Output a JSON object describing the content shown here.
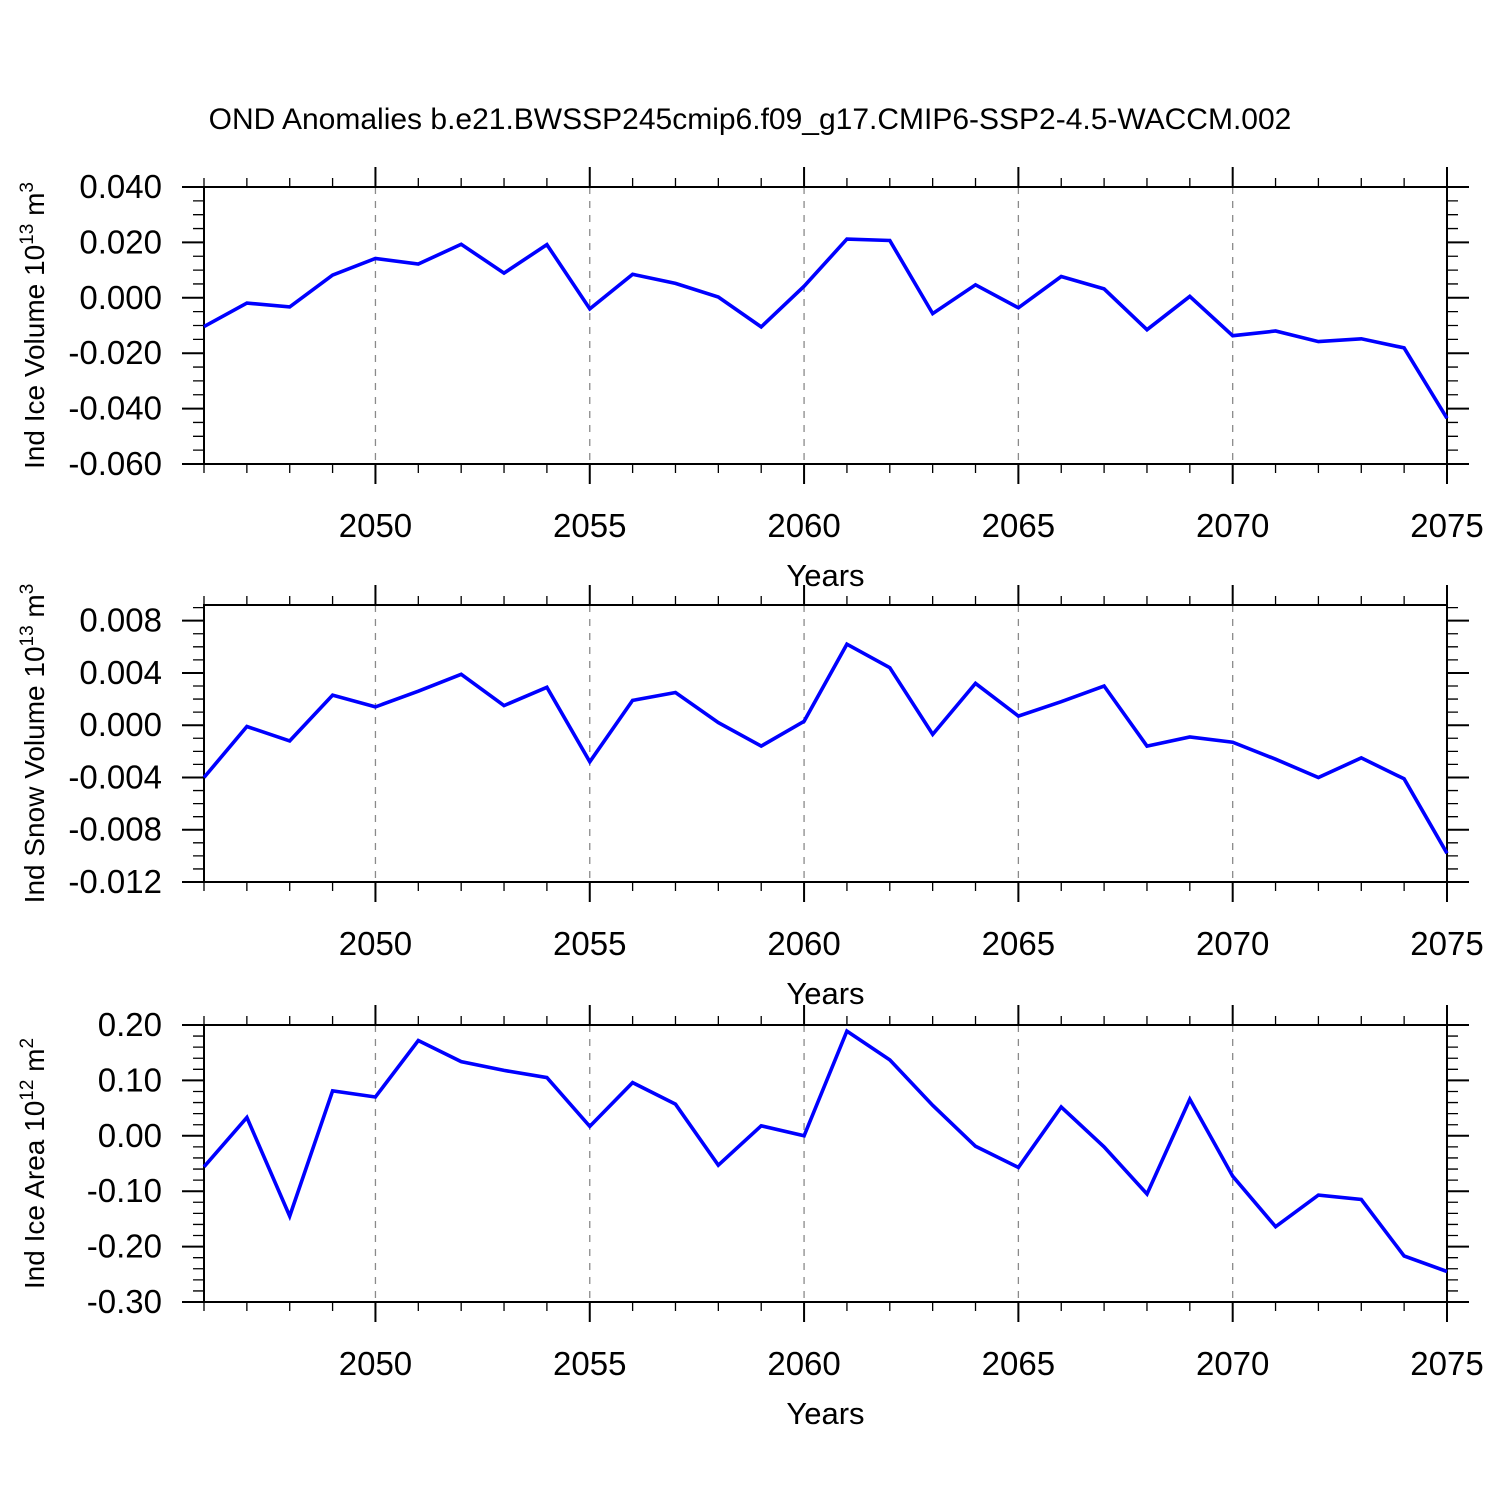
{
  "title": "OND Anomalies b.e21.BWSSP245cmip6.f09_g17.CMIP6-SSP2-4.5-WACCM.002",
  "colors": {
    "line": "#0000ff",
    "grid": "#8a8a8a",
    "axis": "#000000",
    "text": "#000000",
    "background": "#ffffff"
  },
  "chart_data": {
    "type": "line",
    "x": [
      2046,
      2047,
      2048,
      2049,
      2050,
      2051,
      2052,
      2053,
      2054,
      2055,
      2056,
      2057,
      2058,
      2059,
      2060,
      2061,
      2062,
      2063,
      2064,
      2065,
      2066,
      2067,
      2068,
      2069,
      2070,
      2071,
      2072,
      2073,
      2074,
      2075
    ],
    "xlabel": "Years",
    "xticks": [
      {
        "v": 2050,
        "label": "2050"
      },
      {
        "v": 2055,
        "label": "2055"
      },
      {
        "v": 2060,
        "label": "2060"
      },
      {
        "v": 2065,
        "label": "2065"
      },
      {
        "v": 2070,
        "label": "2070"
      },
      {
        "v": 2075,
        "label": "2075"
      }
    ],
    "grid_years": [
      2050,
      2055,
      2060,
      2065,
      2070
    ],
    "legend": "none",
    "grid": "vertical-dashed",
    "panels": [
      {
        "name": "ice-volume",
        "ylabel": "Ind Ice Volume 10^13 m^3",
        "ylabel_parts": [
          {
            "t": "Ind Ice Volume 10"
          },
          {
            "t": "13",
            "sup": true
          },
          {
            "t": " m"
          },
          {
            "t": "3",
            "sup": true
          }
        ],
        "ylim": [
          -0.06,
          0.04
        ],
        "ytick_minor_step": 0.005,
        "yticks": [
          {
            "v": 0.04,
            "label": "0.040"
          },
          {
            "v": 0.02,
            "label": "0.020"
          },
          {
            "v": 0.0,
            "label": "0.000"
          },
          {
            "v": -0.02,
            "label": "-0.020"
          },
          {
            "v": -0.04,
            "label": "-0.040"
          },
          {
            "v": -0.06,
            "label": "-0.060"
          }
        ],
        "values": [
          -0.0104,
          -0.0019,
          -0.0033,
          0.0082,
          0.0142,
          0.0122,
          0.0193,
          0.0089,
          0.0192,
          -0.004,
          0.0085,
          0.0052,
          0.0003,
          -0.0105,
          0.0042,
          0.0212,
          0.0207,
          -0.0057,
          0.0047,
          -0.0036,
          0.0077,
          0.0032,
          -0.0115,
          0.0005,
          -0.0137,
          -0.012,
          -0.0158,
          -0.0148,
          -0.0181,
          -0.0435
        ]
      },
      {
        "name": "snow-volume",
        "ylabel": "Ind Snow Volume 10^13 m^3",
        "ylabel_parts": [
          {
            "t": "Ind Snow Volume 10"
          },
          {
            "t": "13",
            "sup": true
          },
          {
            "t": " m"
          },
          {
            "t": "3",
            "sup": true
          }
        ],
        "ylim": [
          -0.012,
          0.0092
        ],
        "ytick_minor_step": 0.001,
        "yticks": [
          {
            "v": 0.008,
            "label": "0.008"
          },
          {
            "v": 0.004,
            "label": "0.004"
          },
          {
            "v": 0.0,
            "label": "0.000"
          },
          {
            "v": -0.004,
            "label": "-0.004"
          },
          {
            "v": -0.008,
            "label": "-0.008"
          },
          {
            "v": -0.012,
            "label": "-0.012"
          }
        ],
        "values": [
          -0.004,
          -0.0001,
          -0.0012,
          0.0023,
          0.0014,
          0.0026,
          0.0039,
          0.0015,
          0.0029,
          -0.0028,
          0.0019,
          0.0025,
          0.0002,
          -0.0016,
          0.0003,
          0.0062,
          0.0044,
          -0.0007,
          0.0032,
          0.0007,
          0.0018,
          0.003,
          -0.0016,
          -0.0009,
          -0.0013,
          -0.0026,
          -0.004,
          -0.0025,
          -0.0041,
          -0.0098
        ]
      },
      {
        "name": "ice-area",
        "ylabel": "Ind Ice Area 10^12 m^2",
        "ylabel_parts": [
          {
            "t": "Ind Ice Area 10"
          },
          {
            "t": "12",
            "sup": true
          },
          {
            "t": " m"
          },
          {
            "t": "2",
            "sup": true
          }
        ],
        "ylim": [
          -0.3,
          0.2
        ],
        "ytick_minor_step": 0.02,
        "yticks": [
          {
            "v": 0.2,
            "label": "0.20"
          },
          {
            "v": 0.1,
            "label": "0.10"
          },
          {
            "v": 0.0,
            "label": "0.00"
          },
          {
            "v": -0.1,
            "label": "-0.10"
          },
          {
            "v": -0.2,
            "label": "-0.20"
          },
          {
            "v": -0.3,
            "label": "-0.30"
          }
        ],
        "values": [
          -0.056,
          0.033,
          -0.145,
          0.081,
          0.07,
          0.172,
          0.134,
          0.118,
          0.105,
          0.017,
          0.096,
          0.057,
          -0.053,
          0.018,
          0.0,
          0.189,
          0.137,
          0.055,
          -0.019,
          -0.057,
          0.052,
          -0.02,
          -0.105,
          0.066,
          -0.073,
          -0.164,
          -0.107,
          -0.115,
          -0.217,
          -0.245
        ]
      }
    ]
  }
}
